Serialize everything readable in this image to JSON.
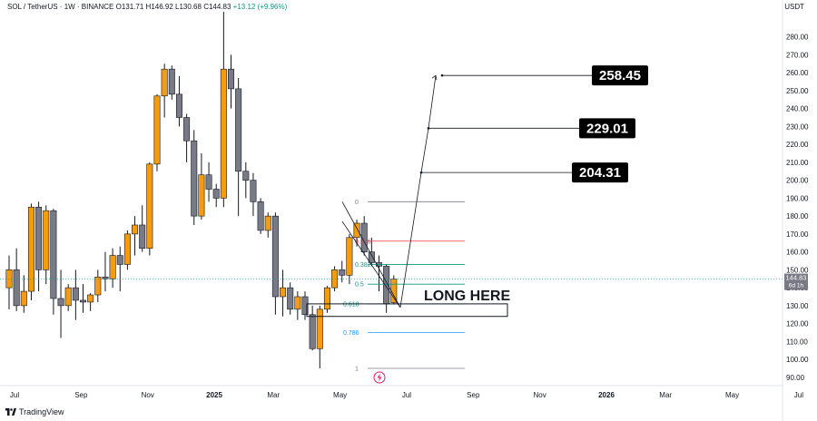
{
  "header": {
    "symbol": "SOL / TetherUS · 1W · BINANCE",
    "open": "O131.71",
    "high": "H146.92",
    "low": "L130.68",
    "close": "C144.83",
    "change": "+13.12 (+9.96%)"
  },
  "currency": "USDT",
  "current_price": {
    "label": "144.83",
    "sub": "6d 1h",
    "value": 144.83
  },
  "footer": {
    "brand": "TradingView"
  },
  "colors": {
    "up": "#f39c12",
    "down": "#787b86",
    "fib_0618": "#089981",
    "fib_0786": "#2196f3"
  },
  "chart_data": {
    "type": "candlestick",
    "symbol": "SOL/USDT",
    "timeframe": "1W",
    "ylim": [
      85,
      290
    ],
    "yticks": [
      90,
      100,
      110,
      120,
      130,
      140,
      150,
      160,
      170,
      180,
      190,
      200,
      210,
      220,
      230,
      240,
      250,
      260,
      270,
      280
    ],
    "xticks": [
      {
        "label": "Jul",
        "x": 0
      },
      {
        "label": "Sep",
        "x": 9
      },
      {
        "label": "Nov",
        "x": 18
      },
      {
        "label": "2025",
        "x": 27,
        "bold": true
      },
      {
        "label": "Mar",
        "x": 35
      },
      {
        "label": "May",
        "x": 44
      },
      {
        "label": "Jul",
        "x": 53
      },
      {
        "label": "Sep",
        "x": 62
      },
      {
        "label": "Nov",
        "x": 71
      },
      {
        "label": "2026",
        "x": 80,
        "bold": true
      },
      {
        "label": "Mar",
        "x": 88
      },
      {
        "label": "May",
        "x": 97
      },
      {
        "label": "Jul",
        "x": 106
      }
    ],
    "candles": [
      {
        "o": 140,
        "h": 158,
        "l": 128,
        "c": 150
      },
      {
        "o": 150,
        "h": 162,
        "l": 127,
        "c": 130
      },
      {
        "o": 130,
        "h": 147,
        "l": 126,
        "c": 138
      },
      {
        "o": 138,
        "h": 187,
        "l": 133,
        "c": 185
      },
      {
        "o": 185,
        "h": 188,
        "l": 138,
        "c": 150
      },
      {
        "o": 150,
        "h": 186,
        "l": 142,
        "c": 183
      },
      {
        "o": 183,
        "h": 184,
        "l": 125,
        "c": 134
      },
      {
        "o": 134,
        "h": 150,
        "l": 112,
        "c": 130
      },
      {
        "o": 130,
        "h": 142,
        "l": 127,
        "c": 140
      },
      {
        "o": 140,
        "h": 150,
        "l": 122,
        "c": 133
      },
      {
        "o": 133,
        "h": 142,
        "l": 126,
        "c": 132
      },
      {
        "o": 132,
        "h": 137,
        "l": 127,
        "c": 136
      },
      {
        "o": 136,
        "h": 150,
        "l": 132,
        "c": 146
      },
      {
        "o": 146,
        "h": 160,
        "l": 138,
        "c": 145
      },
      {
        "o": 145,
        "h": 162,
        "l": 140,
        "c": 158
      },
      {
        "o": 158,
        "h": 163,
        "l": 138,
        "c": 153
      },
      {
        "o": 153,
        "h": 172,
        "l": 150,
        "c": 170
      },
      {
        "o": 170,
        "h": 180,
        "l": 158,
        "c": 175
      },
      {
        "o": 175,
        "h": 186,
        "l": 160,
        "c": 162
      },
      {
        "o": 162,
        "h": 210,
        "l": 158,
        "c": 209
      },
      {
        "o": 209,
        "h": 248,
        "l": 205,
        "c": 247
      },
      {
        "o": 247,
        "h": 265,
        "l": 235,
        "c": 262
      },
      {
        "o": 262,
        "h": 264,
        "l": 245,
        "c": 248
      },
      {
        "o": 248,
        "h": 258,
        "l": 230,
        "c": 235
      },
      {
        "o": 235,
        "h": 237,
        "l": 210,
        "c": 222
      },
      {
        "o": 222,
        "h": 228,
        "l": 175,
        "c": 180
      },
      {
        "o": 180,
        "h": 215,
        "l": 178,
        "c": 203
      },
      {
        "o": 203,
        "h": 210,
        "l": 188,
        "c": 195
      },
      {
        "o": 195,
        "h": 198,
        "l": 185,
        "c": 190
      },
      {
        "o": 190,
        "h": 294,
        "l": 185,
        "c": 262
      },
      {
        "o": 262,
        "h": 270,
        "l": 240,
        "c": 251
      },
      {
        "o": 251,
        "h": 257,
        "l": 180,
        "c": 205
      },
      {
        "o": 205,
        "h": 210,
        "l": 190,
        "c": 200
      },
      {
        "o": 200,
        "h": 204,
        "l": 180,
        "c": 188
      },
      {
        "o": 188,
        "h": 190,
        "l": 170,
        "c": 172
      },
      {
        "o": 172,
        "h": 182,
        "l": 168,
        "c": 180
      },
      {
        "o": 180,
        "h": 182,
        "l": 125,
        "c": 135
      },
      {
        "o": 135,
        "h": 150,
        "l": 124,
        "c": 140
      },
      {
        "o": 140,
        "h": 143,
        "l": 125,
        "c": 128
      },
      {
        "o": 128,
        "h": 138,
        "l": 122,
        "c": 135
      },
      {
        "o": 135,
        "h": 138,
        "l": 122,
        "c": 125
      },
      {
        "o": 125,
        "h": 130,
        "l": 105,
        "c": 106
      },
      {
        "o": 106,
        "h": 130,
        "l": 95,
        "c": 128
      },
      {
        "o": 128,
        "h": 141,
        "l": 126,
        "c": 140
      },
      {
        "o": 140,
        "h": 152,
        "l": 138,
        "c": 150
      },
      {
        "o": 150,
        "h": 155,
        "l": 143,
        "c": 147
      },
      {
        "o": 147,
        "h": 170,
        "l": 142,
        "c": 168
      },
      {
        "o": 168,
        "h": 178,
        "l": 163,
        "c": 176
      },
      {
        "o": 176,
        "h": 180,
        "l": 158,
        "c": 160
      },
      {
        "o": 160,
        "h": 168,
        "l": 152,
        "c": 154
      },
      {
        "o": 154,
        "h": 158,
        "l": 138,
        "c": 152
      },
      {
        "o": 152,
        "h": 153,
        "l": 126,
        "c": 131
      },
      {
        "o": 131.71,
        "h": 146.92,
        "l": 130.68,
        "c": 144.83
      }
    ],
    "fibonacci": {
      "levels": [
        {
          "ratio": "0",
          "price": 188,
          "color": "#787b86"
        },
        {
          "ratio": "0.236",
          "price": 166,
          "color": "#f23645"
        },
        {
          "ratio": "0.382",
          "price": 153,
          "color": "#089981"
        },
        {
          "ratio": "0.5",
          "price": 142,
          "color": "#089981"
        },
        {
          "ratio": "0.618",
          "price": 131,
          "color": "#089981"
        },
        {
          "ratio": "0.786",
          "price": 115,
          "color": "#2196f3"
        },
        {
          "ratio": "1",
          "price": 95,
          "color": "#787b86"
        }
      ]
    },
    "annotations": {
      "long_zone": {
        "label": "LONG HERE",
        "top": 131,
        "bottom": 124
      },
      "targets": [
        204.31,
        229.01,
        258.45
      ]
    }
  }
}
